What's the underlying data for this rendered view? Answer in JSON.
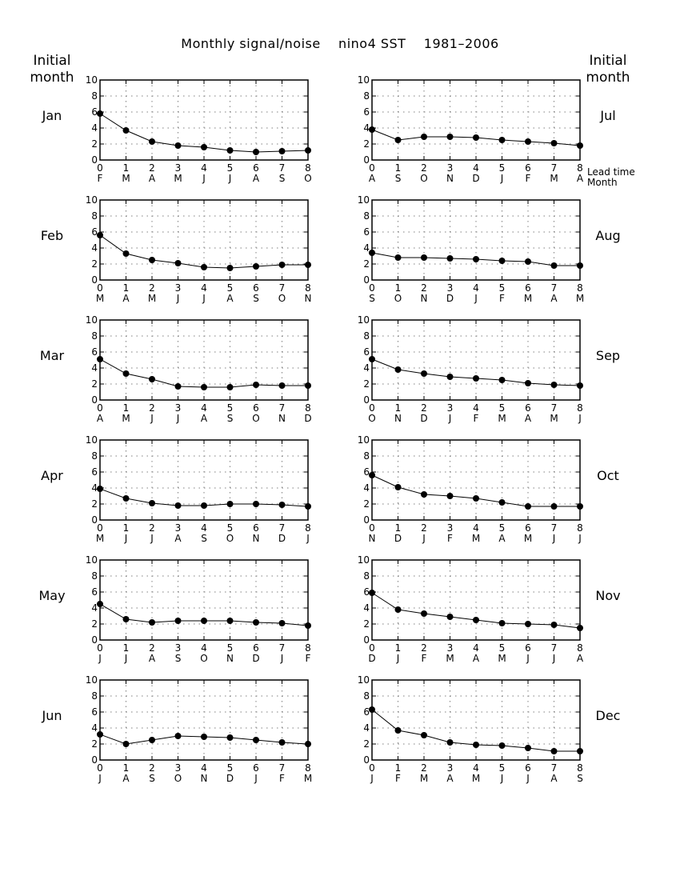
{
  "title": "Monthly signal/noise    nino4 SST    1981–2006",
  "left_header": [
    "Initial",
    "month"
  ],
  "right_header": [
    "Initial",
    "month"
  ],
  "lead_labels": [
    "Lead time",
    "Month"
  ],
  "colors": {
    "line": "#000000",
    "grid": "#808080",
    "background": "#ffffff"
  },
  "chart_data": [
    {
      "type": "line",
      "initial_month": "Jan",
      "x": [
        0,
        1,
        2,
        3,
        4,
        5,
        6,
        7,
        8
      ],
      "lead_months": [
        "F",
        "M",
        "A",
        "M",
        "J",
        "J",
        "A",
        "S",
        "O"
      ],
      "yticks": [
        0,
        2,
        4,
        6,
        8,
        10
      ],
      "ylim": [
        0,
        10
      ],
      "xlim": [
        0,
        8
      ],
      "grid": true,
      "series": [
        {
          "values": [
            5.8,
            3.7,
            2.3,
            1.8,
            1.6,
            1.2,
            1.0,
            1.1,
            1.2
          ]
        }
      ]
    },
    {
      "type": "line",
      "initial_month": "Jul",
      "x": [
        0,
        1,
        2,
        3,
        4,
        5,
        6,
        7,
        8
      ],
      "lead_months": [
        "A",
        "S",
        "O",
        "N",
        "D",
        "J",
        "F",
        "M",
        "A"
      ],
      "yticks": [
        0,
        2,
        4,
        6,
        8,
        10
      ],
      "ylim": [
        0,
        10
      ],
      "xlim": [
        0,
        8
      ],
      "grid": true,
      "series": [
        {
          "values": [
            3.8,
            2.5,
            2.9,
            2.9,
            2.8,
            2.5,
            2.3,
            2.1,
            1.8
          ]
        }
      ]
    },
    {
      "type": "line",
      "initial_month": "Feb",
      "x": [
        0,
        1,
        2,
        3,
        4,
        5,
        6,
        7,
        8
      ],
      "lead_months": [
        "M",
        "A",
        "M",
        "J",
        "J",
        "A",
        "S",
        "O",
        "N"
      ],
      "yticks": [
        0,
        2,
        4,
        6,
        8,
        10
      ],
      "ylim": [
        0,
        10
      ],
      "xlim": [
        0,
        8
      ],
      "grid": true,
      "series": [
        {
          "values": [
            5.6,
            3.3,
            2.5,
            2.1,
            1.6,
            1.5,
            1.7,
            1.9,
            1.9
          ]
        }
      ]
    },
    {
      "type": "line",
      "initial_month": "Aug",
      "x": [
        0,
        1,
        2,
        3,
        4,
        5,
        6,
        7,
        8
      ],
      "lead_months": [
        "S",
        "O",
        "N",
        "D",
        "J",
        "F",
        "M",
        "A",
        "M"
      ],
      "yticks": [
        0,
        2,
        4,
        6,
        8,
        10
      ],
      "ylim": [
        0,
        10
      ],
      "xlim": [
        0,
        8
      ],
      "grid": true,
      "series": [
        {
          "values": [
            3.4,
            2.8,
            2.8,
            2.7,
            2.6,
            2.4,
            2.3,
            1.8,
            1.8
          ]
        }
      ]
    },
    {
      "type": "line",
      "initial_month": "Mar",
      "x": [
        0,
        1,
        2,
        3,
        4,
        5,
        6,
        7,
        8
      ],
      "lead_months": [
        "A",
        "M",
        "J",
        "J",
        "A",
        "S",
        "O",
        "N",
        "D"
      ],
      "yticks": [
        0,
        2,
        4,
        6,
        8,
        10
      ],
      "ylim": [
        0,
        10
      ],
      "xlim": [
        0,
        8
      ],
      "grid": true,
      "series": [
        {
          "values": [
            5.1,
            3.3,
            2.6,
            1.7,
            1.6,
            1.6,
            1.9,
            1.8,
            1.8
          ]
        }
      ]
    },
    {
      "type": "line",
      "initial_month": "Sep",
      "x": [
        0,
        1,
        2,
        3,
        4,
        5,
        6,
        7,
        8
      ],
      "lead_months": [
        "O",
        "N",
        "D",
        "J",
        "F",
        "M",
        "A",
        "M",
        "J"
      ],
      "yticks": [
        0,
        2,
        4,
        6,
        8,
        10
      ],
      "ylim": [
        0,
        10
      ],
      "xlim": [
        0,
        8
      ],
      "grid": true,
      "series": [
        {
          "values": [
            5.1,
            3.8,
            3.3,
            2.9,
            2.7,
            2.5,
            2.1,
            1.9,
            1.8
          ]
        }
      ]
    },
    {
      "type": "line",
      "initial_month": "Apr",
      "x": [
        0,
        1,
        2,
        3,
        4,
        5,
        6,
        7,
        8
      ],
      "lead_months": [
        "M",
        "J",
        "J",
        "A",
        "S",
        "O",
        "N",
        "D",
        "J"
      ],
      "yticks": [
        0,
        2,
        4,
        6,
        8,
        10
      ],
      "ylim": [
        0,
        10
      ],
      "xlim": [
        0,
        8
      ],
      "grid": true,
      "series": [
        {
          "values": [
            3.9,
            2.7,
            2.1,
            1.8,
            1.8,
            2.0,
            2.0,
            1.9,
            1.7
          ]
        }
      ]
    },
    {
      "type": "line",
      "initial_month": "Oct",
      "x": [
        0,
        1,
        2,
        3,
        4,
        5,
        6,
        7,
        8
      ],
      "lead_months": [
        "N",
        "D",
        "J",
        "F",
        "M",
        "A",
        "M",
        "J",
        "J"
      ],
      "yticks": [
        0,
        2,
        4,
        6,
        8,
        10
      ],
      "ylim": [
        0,
        10
      ],
      "xlim": [
        0,
        8
      ],
      "grid": true,
      "series": [
        {
          "values": [
            5.6,
            4.1,
            3.2,
            3.0,
            2.7,
            2.2,
            1.7,
            1.7,
            1.7
          ]
        }
      ]
    },
    {
      "type": "line",
      "initial_month": "May",
      "x": [
        0,
        1,
        2,
        3,
        4,
        5,
        6,
        7,
        8
      ],
      "lead_months": [
        "J",
        "J",
        "A",
        "S",
        "O",
        "N",
        "D",
        "J",
        "F"
      ],
      "yticks": [
        0,
        2,
        4,
        6,
        8,
        10
      ],
      "ylim": [
        0,
        10
      ],
      "xlim": [
        0,
        8
      ],
      "grid": true,
      "series": [
        {
          "values": [
            4.5,
            2.6,
            2.2,
            2.4,
            2.4,
            2.4,
            2.2,
            2.1,
            1.8
          ]
        }
      ]
    },
    {
      "type": "line",
      "initial_month": "Nov",
      "x": [
        0,
        1,
        2,
        3,
        4,
        5,
        6,
        7,
        8
      ],
      "lead_months": [
        "D",
        "J",
        "F",
        "M",
        "A",
        "M",
        "J",
        "J",
        "A"
      ],
      "yticks": [
        0,
        2,
        4,
        6,
        8,
        10
      ],
      "ylim": [
        0,
        10
      ],
      "xlim": [
        0,
        8
      ],
      "grid": true,
      "series": [
        {
          "values": [
            5.9,
            3.8,
            3.3,
            2.9,
            2.5,
            2.1,
            2.0,
            1.9,
            1.5
          ]
        }
      ]
    },
    {
      "type": "line",
      "initial_month": "Jun",
      "x": [
        0,
        1,
        2,
        3,
        4,
        5,
        6,
        7,
        8
      ],
      "lead_months": [
        "J",
        "A",
        "S",
        "O",
        "N",
        "D",
        "J",
        "F",
        "M"
      ],
      "yticks": [
        0,
        2,
        4,
        6,
        8,
        10
      ],
      "ylim": [
        0,
        10
      ],
      "xlim": [
        0,
        8
      ],
      "grid": true,
      "series": [
        {
          "values": [
            3.2,
            2.0,
            2.5,
            3.0,
            2.9,
            2.8,
            2.5,
            2.2,
            2.0
          ]
        }
      ]
    },
    {
      "type": "line",
      "initial_month": "Dec",
      "x": [
        0,
        1,
        2,
        3,
        4,
        5,
        6,
        7,
        8
      ],
      "lead_months": [
        "J",
        "F",
        "M",
        "A",
        "M",
        "J",
        "J",
        "A",
        "S"
      ],
      "yticks": [
        0,
        2,
        4,
        6,
        8,
        10
      ],
      "ylim": [
        0,
        10
      ],
      "xlim": [
        0,
        8
      ],
      "grid": true,
      "series": [
        {
          "values": [
            6.3,
            3.7,
            3.1,
            2.2,
            1.9,
            1.8,
            1.5,
            1.1,
            1.1
          ]
        }
      ]
    }
  ]
}
